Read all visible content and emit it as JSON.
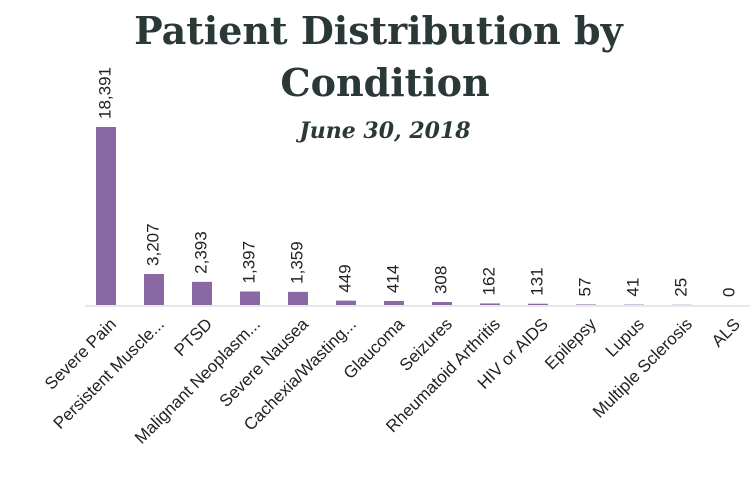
{
  "chart_data": {
    "type": "bar",
    "title": "Patient Distribution by Condition",
    "subtitle": "June 30, 2018",
    "categories": [
      "Severe Pain",
      "Persistent Muscle...",
      "PTSD",
      "Malignant Neoplasm...",
      "Severe Nausea",
      "Cachexia/Wasting...",
      "Glaucoma",
      "Seizures",
      "Rheumatoid Arthritis",
      "HIV or AIDS",
      "Epilepsy",
      "Lupus",
      "Multiple Sclerosis",
      "ALS"
    ],
    "values": [
      18391,
      3207,
      2393,
      1397,
      1359,
      449,
      414,
      308,
      162,
      131,
      57,
      41,
      25,
      0
    ],
    "value_labels": [
      "18,391",
      "3,207",
      "2,393",
      "1,397",
      "1,359",
      "449",
      "414",
      "308",
      "162",
      "131",
      "57",
      "41",
      "25",
      "0"
    ],
    "color": "#8a68a4"
  }
}
